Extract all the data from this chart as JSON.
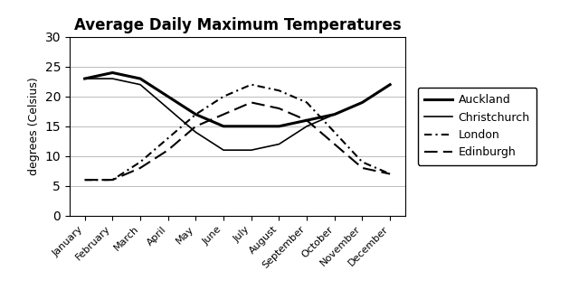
{
  "title": "Average Daily Maximum Temperatures",
  "ylabel": "degrees (Celsius)",
  "months": [
    "January",
    "February",
    "March",
    "April",
    "May",
    "June",
    "July",
    "August",
    "September",
    "October",
    "November",
    "December"
  ],
  "series": {
    "Auckland": [
      23,
      24,
      23,
      20,
      17,
      15,
      15,
      15,
      16,
      17,
      19,
      22
    ],
    "Christchurch": [
      23,
      23,
      22,
      18,
      14,
      11,
      11,
      12,
      15,
      17,
      19,
      22
    ],
    "London": [
      6,
      6,
      9,
      13,
      17,
      20,
      22,
      21,
      19,
      14,
      9,
      7
    ],
    "Edinburgh": [
      6,
      6,
      8,
      11,
      15,
      17,
      19,
      18,
      16,
      12,
      8,
      7
    ]
  },
  "styles": {
    "Auckland": {
      "color": "black",
      "linestyle": "-",
      "linewidth": 2.2
    },
    "Christchurch": {
      "color": "black",
      "linestyle": "-",
      "linewidth": 1.2
    },
    "London": {
      "color": "black",
      "linestyle": "--",
      "linewidth": 1.5,
      "dashes": [
        4,
        2,
        1,
        2
      ]
    },
    "Edinburgh": {
      "color": "black",
      "linestyle": "--",
      "linewidth": 1.5,
      "dashes": [
        7,
        3
      ]
    }
  },
  "ylim": [
    0,
    30
  ],
  "yticks": [
    0,
    5,
    10,
    15,
    20,
    25,
    30
  ],
  "background_color": "#ffffff",
  "grid_color": "#bbbbbb",
  "title_fontsize": 12,
  "label_fontsize": 9,
  "tick_fontsize": 8,
  "legend_fontsize": 9
}
